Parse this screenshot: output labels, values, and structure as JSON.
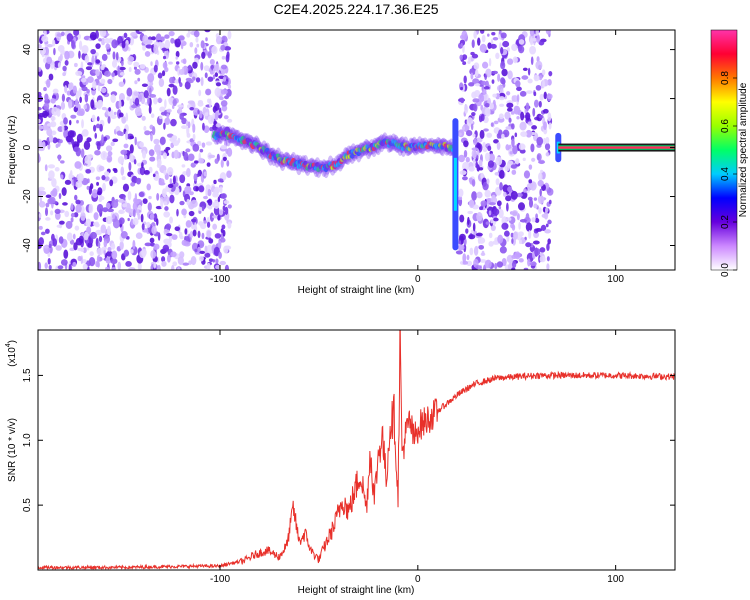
{
  "title": "C2E4.2025.224.17.36.E25",
  "chart_data": [
    {
      "type": "heatmap",
      "xlabel": "Height of straight line (km)",
      "ylabel": "Frequency (Hz)",
      "xlim": [
        -192,
        130
      ],
      "ylim": [
        -50,
        48
      ],
      "xticks": [
        -100,
        0,
        100
      ],
      "yticks": [
        -40,
        -20,
        0,
        20,
        40
      ],
      "grid": false,
      "noise_regions_km": [
        [
          -192,
          -95
        ],
        [
          21,
          67
        ]
      ],
      "ridge": {
        "x": [
          -103,
          -95,
          -88,
          -80,
          -72,
          -65,
          -58,
          -52,
          -45,
          -40,
          -35,
          -28,
          -20,
          -15,
          -10,
          -5,
          0,
          5,
          10,
          15,
          18
        ],
        "y": [
          5,
          5,
          3,
          0,
          -4,
          -6,
          -7,
          -8,
          -8,
          -6,
          -3,
          -1,
          1,
          2,
          1,
          0,
          0,
          1,
          1,
          0,
          -1
        ]
      },
      "bursts": [
        {
          "x": 19,
          "y_range": [
            -42,
            12
          ]
        },
        {
          "x": 71,
          "y_range": [
            -6,
            6
          ]
        }
      ],
      "tone": {
        "x_range": [
          71,
          130
        ],
        "y": 0
      },
      "colorbar": {
        "label": "Normalized spectral amplitude",
        "range": [
          0,
          1
        ],
        "ticks": [
          0.0,
          0.2,
          0.4,
          0.6,
          0.8
        ],
        "tick_labels": [
          "0.0",
          "0.2",
          "0.4",
          "0.6",
          "0.8"
        ],
        "colormap": [
          "#ffffff",
          "#cc88ff",
          "#6600dd",
          "#0000ff",
          "#00ccff",
          "#00ff66",
          "#99ff00",
          "#ffff00",
          "#ff7700",
          "#ff0033",
          "#ff33aa"
        ]
      }
    },
    {
      "type": "line",
      "xlabel": "Height of straight line (km)",
      "ylabel": "SNR (10 * v/v)",
      "multiplier_label": "(x10",
      "multiplier_exponent": "4",
      "xlim": [
        -192,
        130
      ],
      "ylim": [
        0,
        1.85
      ],
      "xticks": [
        -100,
        0,
        100
      ],
      "yticks": [
        0.5,
        1.0,
        1.5
      ],
      "ytick_labels": [
        "0.5",
        "1.0",
        "1.5"
      ],
      "grid": false,
      "series": [
        {
          "color": "#e8302a",
          "x": [
            -192,
            -150,
            -110,
            -100,
            -95,
            -88,
            -82,
            -76,
            -70,
            -66,
            -63,
            -60,
            -57,
            -54,
            -50,
            -46,
            -42,
            -38,
            -35,
            -32,
            -29,
            -26,
            -24,
            -22,
            -20,
            -18,
            -16,
            -14,
            -12,
            -10,
            -9,
            -8,
            -6,
            -4,
            -2,
            0,
            4,
            8,
            12,
            16,
            20,
            25,
            30,
            35,
            40,
            50,
            60,
            80,
            100,
            130
          ],
          "y": [
            0.02,
            0.02,
            0.03,
            0.03,
            0.05,
            0.07,
            0.12,
            0.15,
            0.1,
            0.2,
            0.48,
            0.22,
            0.28,
            0.15,
            0.08,
            0.22,
            0.35,
            0.55,
            0.45,
            0.6,
            0.75,
            0.48,
            0.92,
            0.55,
            0.88,
            1.05,
            0.7,
            1.12,
            1.2,
            0.55,
            1.85,
            0.9,
            1.05,
            1.15,
            1.0,
            1.1,
            1.15,
            1.2,
            1.25,
            1.3,
            1.35,
            1.4,
            1.44,
            1.46,
            1.48,
            1.49,
            1.5,
            1.5,
            1.5,
            1.49
          ]
        }
      ]
    }
  ]
}
